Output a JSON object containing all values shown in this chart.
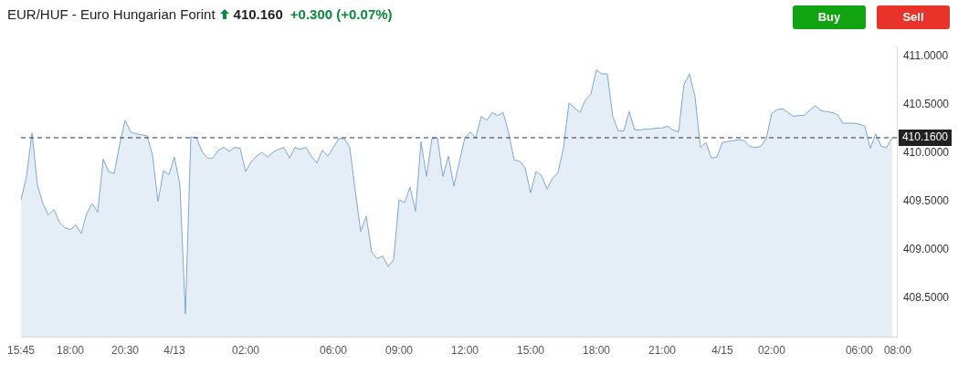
{
  "chart_data": {
    "type": "area",
    "title": "EUR/HUF - Euro Hungarian Forint",
    "annotations": [
      "410.160",
      "+0.300 (+0.07%)",
      "Buy",
      "Sell"
    ],
    "categories": [
      "15:45",
      null,
      null,
      null,
      null,
      null,
      null,
      null,
      null,
      "18:00",
      null,
      null,
      null,
      null,
      null,
      null,
      null,
      null,
      null,
      "20:30",
      null,
      null,
      null,
      null,
      null,
      null,
      null,
      null,
      "4/13",
      null,
      null,
      null,
      null,
      null,
      null,
      null,
      null,
      null,
      null,
      null,
      null,
      "02:00",
      null,
      null,
      null,
      null,
      null,
      null,
      null,
      null,
      null,
      null,
      null,
      null,
      null,
      null,
      null,
      "06:00",
      null,
      null,
      null,
      null,
      null,
      null,
      null,
      null,
      null,
      null,
      null,
      "09:00",
      null,
      null,
      null,
      null,
      null,
      null,
      null,
      null,
      null,
      null,
      null,
      "12:00",
      null,
      null,
      null,
      null,
      null,
      null,
      null,
      null,
      null,
      null,
      null,
      "15:00",
      null,
      null,
      null,
      null,
      null,
      null,
      null,
      null,
      null,
      null,
      null,
      "18:00",
      null,
      null,
      null,
      null,
      null,
      null,
      null,
      null,
      null,
      null,
      null,
      "21:00",
      null,
      null,
      null,
      null,
      null,
      null,
      null,
      null,
      null,
      null,
      "4/15",
      null,
      null,
      null,
      null,
      null,
      null,
      null,
      null,
      "02:00",
      null,
      null,
      null,
      null,
      null,
      null,
      null,
      null,
      null,
      null,
      null,
      null,
      null,
      null,
      null,
      "06:00",
      null,
      null,
      null,
      null,
      null,
      null,
      "08:00"
    ],
    "series": [
      {
        "color": "#7ea7d3",
        "values": [
          409.52,
          409.76,
          410.21,
          409.67,
          409.48,
          409.36,
          409.42,
          409.29,
          409.23,
          409.21,
          409.26,
          409.17,
          409.38,
          409.48,
          409.39,
          409.94,
          409.81,
          409.79,
          410.09,
          410.34,
          410.22,
          410.2,
          410.19,
          410.18,
          409.98,
          409.5,
          409.82,
          409.78,
          409.96,
          409.67,
          408.34,
          410.17,
          410.16,
          410.02,
          409.95,
          409.95,
          410.03,
          410.06,
          410.02,
          410.06,
          410.05,
          409.81,
          409.91,
          409.97,
          410.01,
          409.96,
          410.01,
          410.04,
          410.06,
          409.95,
          410.06,
          410.04,
          410.06,
          409.97,
          409.9,
          410.03,
          409.97,
          410.06,
          410.15,
          410.15,
          410.06,
          409.61,
          409.19,
          409.35,
          408.98,
          408.91,
          408.94,
          408.83,
          408.9,
          409.52,
          409.49,
          409.65,
          409.4,
          410.12,
          409.76,
          410.15,
          410.16,
          409.76,
          409.97,
          409.66,
          409.91,
          410.16,
          410.22,
          410.16,
          410.38,
          410.34,
          410.42,
          410.39,
          410.42,
          410.21,
          409.93,
          409.92,
          409.85,
          409.59,
          409.81,
          409.77,
          409.63,
          409.74,
          409.8,
          410.05,
          410.52,
          410.47,
          410.42,
          410.55,
          410.61,
          410.86,
          410.82,
          410.82,
          410.38,
          410.23,
          410.23,
          410.43,
          410.24,
          410.24,
          410.25,
          410.25,
          410.26,
          410.26,
          410.28,
          410.24,
          410.22,
          410.71,
          410.82,
          410.59,
          410.06,
          410.11,
          409.95,
          409.96,
          410.11,
          410.12,
          410.13,
          410.14,
          410.13,
          410.07,
          410.06,
          410.07,
          410.15,
          410.41,
          410.45,
          410.46,
          410.42,
          410.38,
          410.39,
          410.39,
          410.45,
          410.49,
          410.44,
          410.43,
          410.42,
          410.4,
          410.31,
          410.31,
          410.31,
          410.3,
          410.28,
          410.05,
          410.2,
          410.07,
          410.06,
          410.16,
          null
        ]
      }
    ],
    "ylim": [
      408.1,
      411.1
    ],
    "yticks": [
      {
        "value": 408.5,
        "label": "408.5000"
      },
      {
        "value": 409,
        "label": "409.0000"
      },
      {
        "value": 409.5,
        "label": "409.5000"
      },
      {
        "value": 410,
        "label": "410.0000"
      },
      {
        "value": 410.5,
        "label": "410.5000"
      },
      {
        "value": 411,
        "label": "411.0000"
      }
    ],
    "ref_lines": [
      {
        "axis": "y",
        "value": 410.16,
        "label": "410.1600",
        "color": "#333333",
        "line_style": "dashed"
      }
    ],
    "grid": false,
    "legend": false
  }
}
